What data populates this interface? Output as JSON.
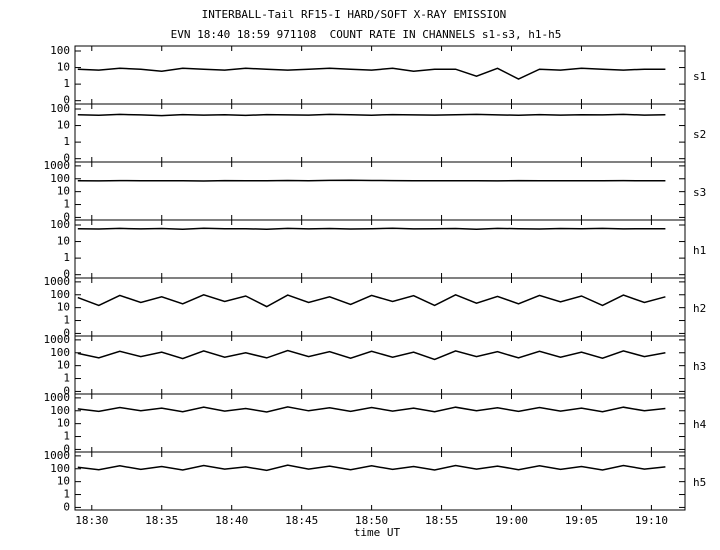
{
  "chart_data": [
    {
      "type": "line",
      "title": "INTERBALL-Tail RF15-I HARD/SOFT X-RAY EMISSION",
      "subtitle": "EVN 18:40 18:59 971108  COUNT RATE IN CHANNELS s1-s3, h1-h5",
      "x": [
        1109,
        1110.5,
        1112,
        1113.5,
        1115,
        1116.5,
        1118,
        1119.5,
        1121,
        1122.5,
        1124,
        1125.5,
        1127,
        1128.5,
        1130,
        1131.5,
        1133,
        1134.5,
        1136,
        1137.5,
        1139,
        1140.5,
        1142,
        1143.5,
        1145,
        1146.5,
        1148,
        1149.5,
        1151
      ],
      "series": [
        {
          "name": "s1",
          "color": "#000000",
          "values": [
            8,
            7,
            9,
            8,
            6,
            9,
            8,
            7,
            9,
            8,
            7,
            8,
            9,
            8,
            7,
            9,
            6,
            8,
            8,
            3,
            9,
            2,
            8,
            7,
            9,
            8,
            7,
            8,
            8
          ]
        }
      ],
      "ylim": [
        0,
        200
      ],
      "yticks": [
        0,
        1,
        10,
        100
      ],
      "yscale": "log",
      "xlim": [
        1108.8,
        1152.4
      ]
    },
    {
      "type": "line",
      "x": [
        1109,
        1110.5,
        1112,
        1113.5,
        1115,
        1116.5,
        1118,
        1119.5,
        1121,
        1122.5,
        1124,
        1125.5,
        1127,
        1128.5,
        1130,
        1131.5,
        1133,
        1134.5,
        1136,
        1137.5,
        1139,
        1140.5,
        1142,
        1143.5,
        1145,
        1146.5,
        1148,
        1149.5,
        1151
      ],
      "series": [
        {
          "name": "s2",
          "color": "#000000",
          "values": [
            45,
            42,
            47,
            44,
            40,
            46,
            43,
            45,
            41,
            46,
            44,
            43,
            47,
            45,
            42,
            46,
            44,
            43,
            45,
            47,
            44,
            42,
            46,
            43,
            45,
            44,
            47,
            43,
            45
          ]
        }
      ],
      "ylim": [
        0,
        200
      ],
      "yticks": [
        0,
        1,
        10,
        100
      ],
      "yscale": "log",
      "xlim": [
        1108.8,
        1152.4
      ]
    },
    {
      "type": "line",
      "x": [
        1109,
        1110.5,
        1112,
        1113.5,
        1115,
        1116.5,
        1118,
        1119.5,
        1121,
        1122.5,
        1124,
        1125.5,
        1127,
        1128.5,
        1130,
        1131.5,
        1133,
        1134.5,
        1136,
        1137.5,
        1139,
        1140.5,
        1142,
        1143.5,
        1145,
        1146.5,
        1148,
        1149.5,
        1151
      ],
      "series": [
        {
          "name": "s3",
          "color": "#000000",
          "values": [
            70,
            68,
            72,
            69,
            71,
            70,
            67,
            72,
            70,
            69,
            73,
            71,
            75,
            78,
            74,
            72,
            70,
            69,
            71,
            70,
            68,
            72,
            70,
            69,
            71,
            70,
            72,
            69,
            70
          ]
        }
      ],
      "ylim": [
        0,
        2000
      ],
      "yticks": [
        0,
        1,
        10,
        100,
        1000
      ],
      "yscale": "log",
      "xlim": [
        1108.8,
        1152.4
      ]
    },
    {
      "type": "line",
      "x": [
        1109,
        1110.5,
        1112,
        1113.5,
        1115,
        1116.5,
        1118,
        1119.5,
        1121,
        1122.5,
        1124,
        1125.5,
        1127,
        1128.5,
        1130,
        1131.5,
        1133,
        1134.5,
        1136,
        1137.5,
        1139,
        1140.5,
        1142,
        1143.5,
        1145,
        1146.5,
        1148,
        1149.5,
        1151
      ],
      "series": [
        {
          "name": "h1",
          "color": "#000000",
          "values": [
            60,
            57,
            62,
            58,
            61,
            56,
            63,
            59,
            60,
            55,
            62,
            58,
            61,
            57,
            60,
            63,
            58,
            59,
            61,
            56,
            62,
            60,
            57,
            61,
            59,
            62,
            58,
            60,
            59
          ]
        }
      ],
      "ylim": [
        0,
        200
      ],
      "yticks": [
        0,
        1,
        10,
        100
      ],
      "yscale": "log",
      "xlim": [
        1108.8,
        1152.4
      ]
    },
    {
      "type": "line",
      "x": [
        1109,
        1110.5,
        1112,
        1113.5,
        1115,
        1116.5,
        1118,
        1119.5,
        1121,
        1122.5,
        1124,
        1125.5,
        1127,
        1128.5,
        1130,
        1131.5,
        1133,
        1134.5,
        1136,
        1137.5,
        1139,
        1140.5,
        1142,
        1143.5,
        1145,
        1146.5,
        1148,
        1149.5,
        1151
      ],
      "series": [
        {
          "name": "h2",
          "color": "#000000",
          "values": [
            60,
            15,
            90,
            25,
            70,
            20,
            100,
            30,
            80,
            12,
            95,
            25,
            70,
            18,
            90,
            30,
            85,
            15,
            100,
            22,
            75,
            20,
            90,
            28,
            80,
            15,
            95,
            25,
            70
          ]
        }
      ],
      "ylim": [
        0,
        2000
      ],
      "yticks": [
        0,
        1,
        10,
        100,
        1000
      ],
      "yscale": "log",
      "xlim": [
        1108.8,
        1152.4
      ]
    },
    {
      "type": "line",
      "x": [
        1109,
        1110.5,
        1112,
        1113.5,
        1115,
        1116.5,
        1118,
        1119.5,
        1121,
        1122.5,
        1124,
        1125.5,
        1127,
        1128.5,
        1130,
        1131.5,
        1133,
        1134.5,
        1136,
        1137.5,
        1139,
        1140.5,
        1142,
        1143.5,
        1145,
        1146.5,
        1148,
        1149.5,
        1151
      ],
      "series": [
        {
          "name": "h3",
          "color": "#000000",
          "values": [
            90,
            40,
            130,
            50,
            110,
            35,
            140,
            45,
            100,
            40,
            150,
            50,
            120,
            38,
            130,
            45,
            110,
            30,
            140,
            50,
            120,
            40,
            130,
            45,
            110,
            38,
            140,
            50,
            100
          ]
        }
      ],
      "ylim": [
        0,
        2000
      ],
      "yticks": [
        0,
        1,
        10,
        100,
        1000
      ],
      "yscale": "log",
      "xlim": [
        1108.8,
        1152.4
      ]
    },
    {
      "type": "line",
      "x": [
        1109,
        1110.5,
        1112,
        1113.5,
        1115,
        1116.5,
        1118,
        1119.5,
        1121,
        1122.5,
        1124,
        1125.5,
        1127,
        1128.5,
        1130,
        1131.5,
        1133,
        1134.5,
        1136,
        1137.5,
        1139,
        1140.5,
        1142,
        1143.5,
        1145,
        1146.5,
        1148,
        1149.5,
        1151
      ],
      "series": [
        {
          "name": "h4",
          "color": "#000000",
          "values": [
            140,
            90,
            180,
            100,
            160,
            85,
            190,
            95,
            150,
            80,
            200,
            100,
            170,
            90,
            180,
            95,
            160,
            85,
            190,
            100,
            170,
            90,
            180,
            95,
            160,
            85,
            190,
            100,
            150
          ]
        }
      ],
      "ylim": [
        0,
        2000
      ],
      "yticks": [
        0,
        1,
        10,
        100,
        1000
      ],
      "yscale": "log",
      "xlim": [
        1108.8,
        1152.4
      ]
    },
    {
      "type": "line",
      "x_label": "time UT",
      "x": [
        1109,
        1110.5,
        1112,
        1113.5,
        1115,
        1116.5,
        1118,
        1119.5,
        1121,
        1122.5,
        1124,
        1125.5,
        1127,
        1128.5,
        1130,
        1131.5,
        1133,
        1134.5,
        1136,
        1137.5,
        1139,
        1140.5,
        1142,
        1143.5,
        1145,
        1146.5,
        1148,
        1149.5,
        1151
      ],
      "series": [
        {
          "name": "h5",
          "color": "#000000",
          "values": [
            130,
            85,
            170,
            90,
            150,
            80,
            180,
            95,
            140,
            75,
            190,
            95,
            160,
            85,
            170,
            90,
            150,
            80,
            180,
            95,
            160,
            85,
            170,
            90,
            150,
            80,
            180,
            95,
            140
          ]
        }
      ],
      "ylim": [
        0,
        2000
      ],
      "yticks": [
        0,
        1,
        10,
        100,
        1000
      ],
      "yscale": "log",
      "xlim": [
        1108.8,
        1152.4
      ],
      "xticks": [
        {
          "value": 1110,
          "label": "18:30"
        },
        {
          "value": 1115,
          "label": "18:35"
        },
        {
          "value": 1120,
          "label": "18:40"
        },
        {
          "value": 1125,
          "label": "18:45"
        },
        {
          "value": 1130,
          "label": "18:50"
        },
        {
          "value": 1135,
          "label": "18:55"
        },
        {
          "value": 1140,
          "label": "19:00"
        },
        {
          "value": 1145,
          "label": "19:05"
        },
        {
          "value": 1150,
          "label": "19:10"
        }
      ]
    }
  ]
}
